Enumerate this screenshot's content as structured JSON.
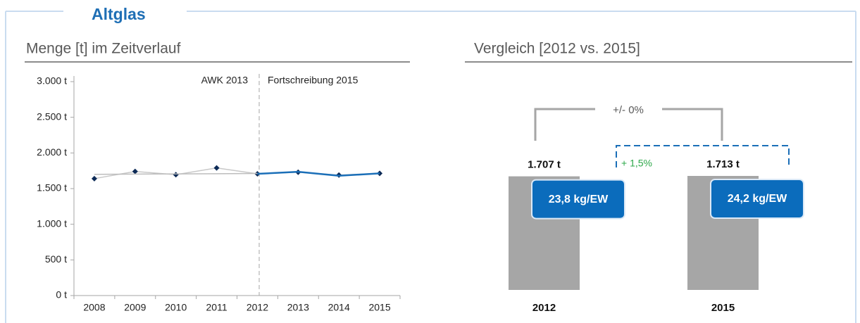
{
  "title": "Altglas",
  "chart_data": [
    {
      "type": "line",
      "subtitle": "Menge [t] im Zeitverlauf",
      "categories": [
        "2008",
        "2009",
        "2010",
        "2011",
        "2012",
        "2013",
        "2014",
        "2015"
      ],
      "series": [
        {
          "color": "#c8c8c8",
          "marker_color": "#0d2b57",
          "markers": true,
          "values": [
            1640,
            1740,
            1695,
            1790,
            1707,
            1730,
            1690,
            1713
          ]
        },
        {
          "color": "#bdbdbd",
          "values": [
            1700,
            1703,
            1706,
            1709,
            1712,
            null,
            null,
            null
          ]
        },
        {
          "color": "#1b6fb8",
          "values": [
            null,
            null,
            null,
            null,
            1707,
            1735,
            1680,
            1713
          ]
        }
      ],
      "ylim": [
        0,
        3000
      ],
      "yticks": [
        {
          "value": 0,
          "label": "0 t"
        },
        {
          "value": 500,
          "label": "500 t"
        },
        {
          "value": 1000,
          "label": "1.000 t"
        },
        {
          "value": 1500,
          "label": "1.500 t"
        },
        {
          "value": 2000,
          "label": "2.000 t"
        },
        {
          "value": 2500,
          "label": "2.500 t"
        },
        {
          "value": 3000,
          "label": "3.000 t"
        }
      ],
      "annotations": [
        "AWK 2013",
        "Fortschreibung 2015"
      ]
    },
    {
      "type": "bar",
      "subtitle": "Vergleich [2012 vs. 2015]",
      "categories": [
        "2012",
        "2015"
      ],
      "values": [
        1707,
        1713
      ],
      "value_labels": [
        "1.707 t",
        "1.713 t"
      ],
      "color": "#a6a6a6",
      "per_capita": {
        "values": [
          23.8,
          24.2
        ],
        "value_labels": [
          "23,8 kg/EW",
          "24,2 kg/EW"
        ],
        "color": "#0b6cbc"
      },
      "annotations": [
        "+/- 0%",
        "+ 1,5%"
      ]
    }
  ]
}
